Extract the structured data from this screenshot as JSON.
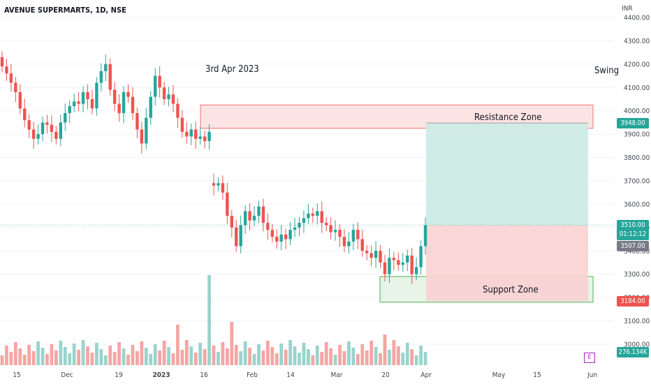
{
  "header": {
    "symbol_line": "AVENUE SUPERMARTS, 1D, NSE"
  },
  "annotations": {
    "date_label": "3rd Apr 2023",
    "strategy_label": "Swing",
    "resistance_label": "Resistance Zone",
    "support_label": "Support Zone"
  },
  "price_axis": {
    "unit": "INR"
  },
  "tags": {
    "target": "3948.00",
    "current_price": "3510.00",
    "countdown": "01:12:12",
    "prev_close": "3507.00",
    "stop": "3184.00",
    "volume": "276.134K"
  },
  "earnings_badge": "E",
  "colors": {
    "up": "#26a69a",
    "down": "#ef5350",
    "up_vol": "#9ad4cc",
    "down_vol": "#f4a6a4",
    "resistance_fill": "#fde4e4",
    "resistance_border": "#f07070",
    "support_fill": "#e7f4e7",
    "support_border": "#4caf50",
    "target_fill": "#cdebe6",
    "stop_fill": "#f9d2d2",
    "prev_close_tag": "#787b86"
  },
  "chart_data": {
    "type": "candlestick",
    "title": "AVENUE SUPERMARTS, 1D, NSE",
    "ylabel": "INR",
    "ylim": [
      2950,
      4450
    ],
    "y_ticks": [
      "4400.00",
      "4300.00",
      "4200.00",
      "4100.00",
      "4000.00",
      "3900.00",
      "3800.00",
      "3700.00",
      "3600.00",
      "3500.00",
      "3400.00",
      "3300.00",
      "3200.00",
      "3100.00",
      "3000.00"
    ],
    "x_ticks": [
      "15",
      "Dec",
      "19",
      "2023",
      "16",
      "Feb",
      "14",
      "Mar",
      "20",
      "Apr",
      "May",
      "15",
      "Jun"
    ],
    "resistance_zone": [
      3925,
      4025
    ],
    "support_zone": [
      3180,
      3290
    ],
    "position": {
      "type": "long",
      "entry": 3510,
      "target": 3948,
      "stop": 3184
    },
    "volume_last": "276.134K",
    "closes": [
      4190,
      4160,
      4120,
      4080,
      4010,
      3960,
      3920,
      3880,
      3900,
      3950,
      3940,
      3910,
      3880,
      3950,
      3990,
      4020,
      4040,
      4030,
      4080,
      4050,
      4010,
      4120,
      4170,
      4200,
      4090,
      4030,
      3990,
      4080,
      4060,
      3990,
      3920,
      3860,
      3970,
      4060,
      4150,
      4100,
      4050,
      4070,
      4030,
      3970,
      3910,
      3890,
      3920,
      3880,
      3890,
      3870,
      3910,
      3680,
      3690,
      3650,
      3550,
      3500,
      3420,
      3510,
      3570,
      3530,
      3550,
      3590,
      3520,
      3490,
      3460,
      3440,
      3470,
      3450,
      3490,
      3500,
      3520,
      3540,
      3560,
      3550,
      3570,
      3520,
      3510,
      3480,
      3490,
      3460,
      3420,
      3440,
      3490,
      3450,
      3400,
      3390,
      3370,
      3400,
      3350,
      3300,
      3370,
      3360,
      3340,
      3350,
      3380,
      3300,
      3330,
      3420,
      3510
    ]
  }
}
